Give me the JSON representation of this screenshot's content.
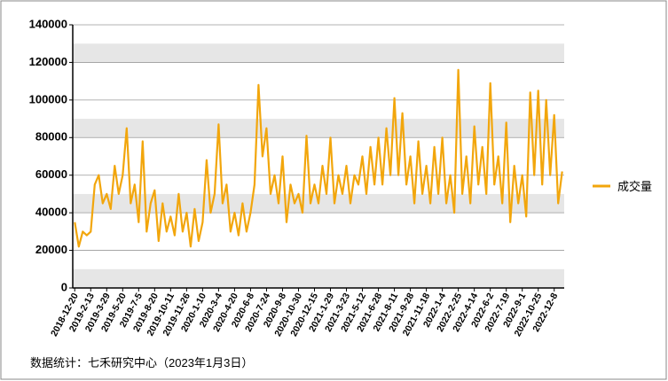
{
  "chart_data": {
    "type": "line",
    "categories": [
      "2018-12-20",
      null,
      null,
      null,
      "2019-2-13",
      null,
      null,
      null,
      "2019-3-29",
      null,
      null,
      null,
      "2019-5-20",
      null,
      null,
      null,
      "2019-7-5",
      null,
      null,
      null,
      "2019-8-20",
      null,
      null,
      null,
      "2019-10-11",
      null,
      null,
      null,
      "2019-11-26",
      null,
      null,
      null,
      "2020-1-10",
      null,
      null,
      null,
      "2020-3-4",
      null,
      null,
      null,
      "2020-4-20",
      null,
      null,
      null,
      "2020-6-8",
      null,
      null,
      null,
      "2020-7-24",
      null,
      null,
      null,
      "2020-9-8",
      null,
      null,
      null,
      "2020-10-30",
      null,
      null,
      null,
      "2020-12-15",
      null,
      null,
      null,
      "2021-1-29",
      null,
      null,
      null,
      "2021-3-23",
      null,
      null,
      null,
      "2021-5-12",
      null,
      null,
      null,
      "2021-6-28",
      null,
      null,
      null,
      "2021-8-11",
      null,
      null,
      null,
      "2021-9-28",
      null,
      null,
      null,
      "2021-11-18",
      null,
      null,
      null,
      "2022-1-4",
      null,
      null,
      null,
      "2022-2-25",
      null,
      null,
      null,
      "2022-4-14",
      null,
      null,
      null,
      "2022-6-2",
      null,
      null,
      null,
      "2022-7-19",
      null,
      null,
      null,
      "2022-9-1",
      null,
      null,
      null,
      "2022-10-25",
      null,
      null,
      null,
      "2022-12-8",
      null,
      null
    ],
    "series": [
      {
        "name": "成交量",
        "color": "#f2a60c",
        "values": [
          35000,
          22000,
          30000,
          28000,
          30000,
          55000,
          60000,
          45000,
          50000,
          42000,
          65000,
          50000,
          60000,
          85000,
          45000,
          55000,
          35000,
          78000,
          30000,
          45000,
          52000,
          25000,
          45000,
          30000,
          38000,
          28000,
          50000,
          30000,
          40000,
          22000,
          42000,
          25000,
          35000,
          68000,
          40000,
          50000,
          87000,
          45000,
          55000,
          30000,
          40000,
          28000,
          45000,
          30000,
          40000,
          55000,
          108000,
          70000,
          85000,
          50000,
          60000,
          45000,
          70000,
          35000,
          55000,
          45000,
          50000,
          40000,
          81000,
          45000,
          55000,
          45000,
          65000,
          50000,
          80000,
          45000,
          60000,
          50000,
          65000,
          45000,
          60000,
          55000,
          70000,
          50000,
          75000,
          55000,
          80000,
          55000,
          85000,
          60000,
          101000,
          60000,
          93000,
          55000,
          70000,
          45000,
          78000,
          50000,
          65000,
          45000,
          75000,
          50000,
          80000,
          45000,
          60000,
          40000,
          116000,
          50000,
          70000,
          45000,
          86000,
          55000,
          75000,
          50000,
          109000,
          55000,
          70000,
          45000,
          88000,
          35000,
          65000,
          45000,
          60000,
          38000,
          104000,
          60000,
          105000,
          55000,
          100000,
          60000,
          92000,
          45000,
          62000
        ]
      }
    ],
    "ylim": [
      0,
      140000
    ],
    "yticks": [
      0,
      20000,
      40000,
      60000,
      80000,
      100000,
      120000,
      140000
    ],
    "grid": true,
    "legend": "right",
    "note": "数据统计：七禾研究中心（2023年1月3日）"
  }
}
